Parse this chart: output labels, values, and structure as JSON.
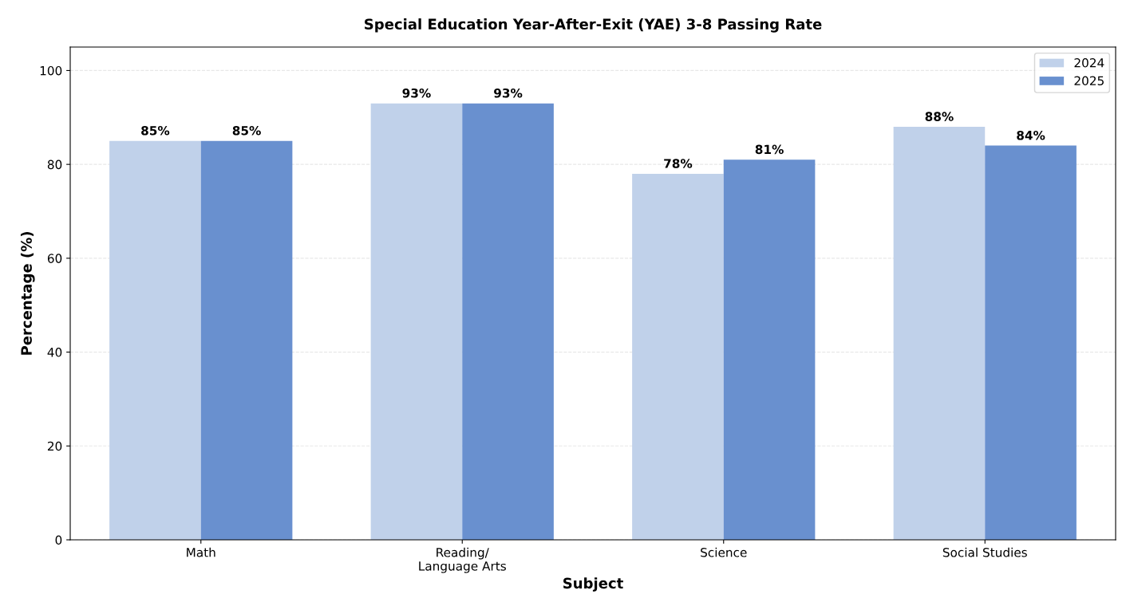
{
  "chart_data": {
    "type": "bar",
    "title": "Special Education Year-After-Exit (YAE) 3-8 Passing Rate",
    "xlabel": "Subject",
    "ylabel": "Percentage (%)",
    "categories": [
      "Math",
      "Reading/\nLanguage Arts",
      "Science",
      "Social Studies"
    ],
    "series": [
      {
        "name": "2024",
        "color": "#c0d1ea",
        "values": [
          85,
          93,
          78,
          88
        ],
        "value_labels": [
          "85%",
          "93%",
          "78%",
          "88%"
        ]
      },
      {
        "name": "2025",
        "color": "#6990cf",
        "values": [
          85,
          93,
          81,
          84
        ],
        "value_labels": [
          "85%",
          "93%",
          "81%",
          "84%"
        ]
      }
    ],
    "ylim": [
      0,
      105
    ],
    "yticks": [
      0,
      20,
      40,
      60,
      80,
      100
    ],
    "grid": "y",
    "legend": "top right"
  }
}
